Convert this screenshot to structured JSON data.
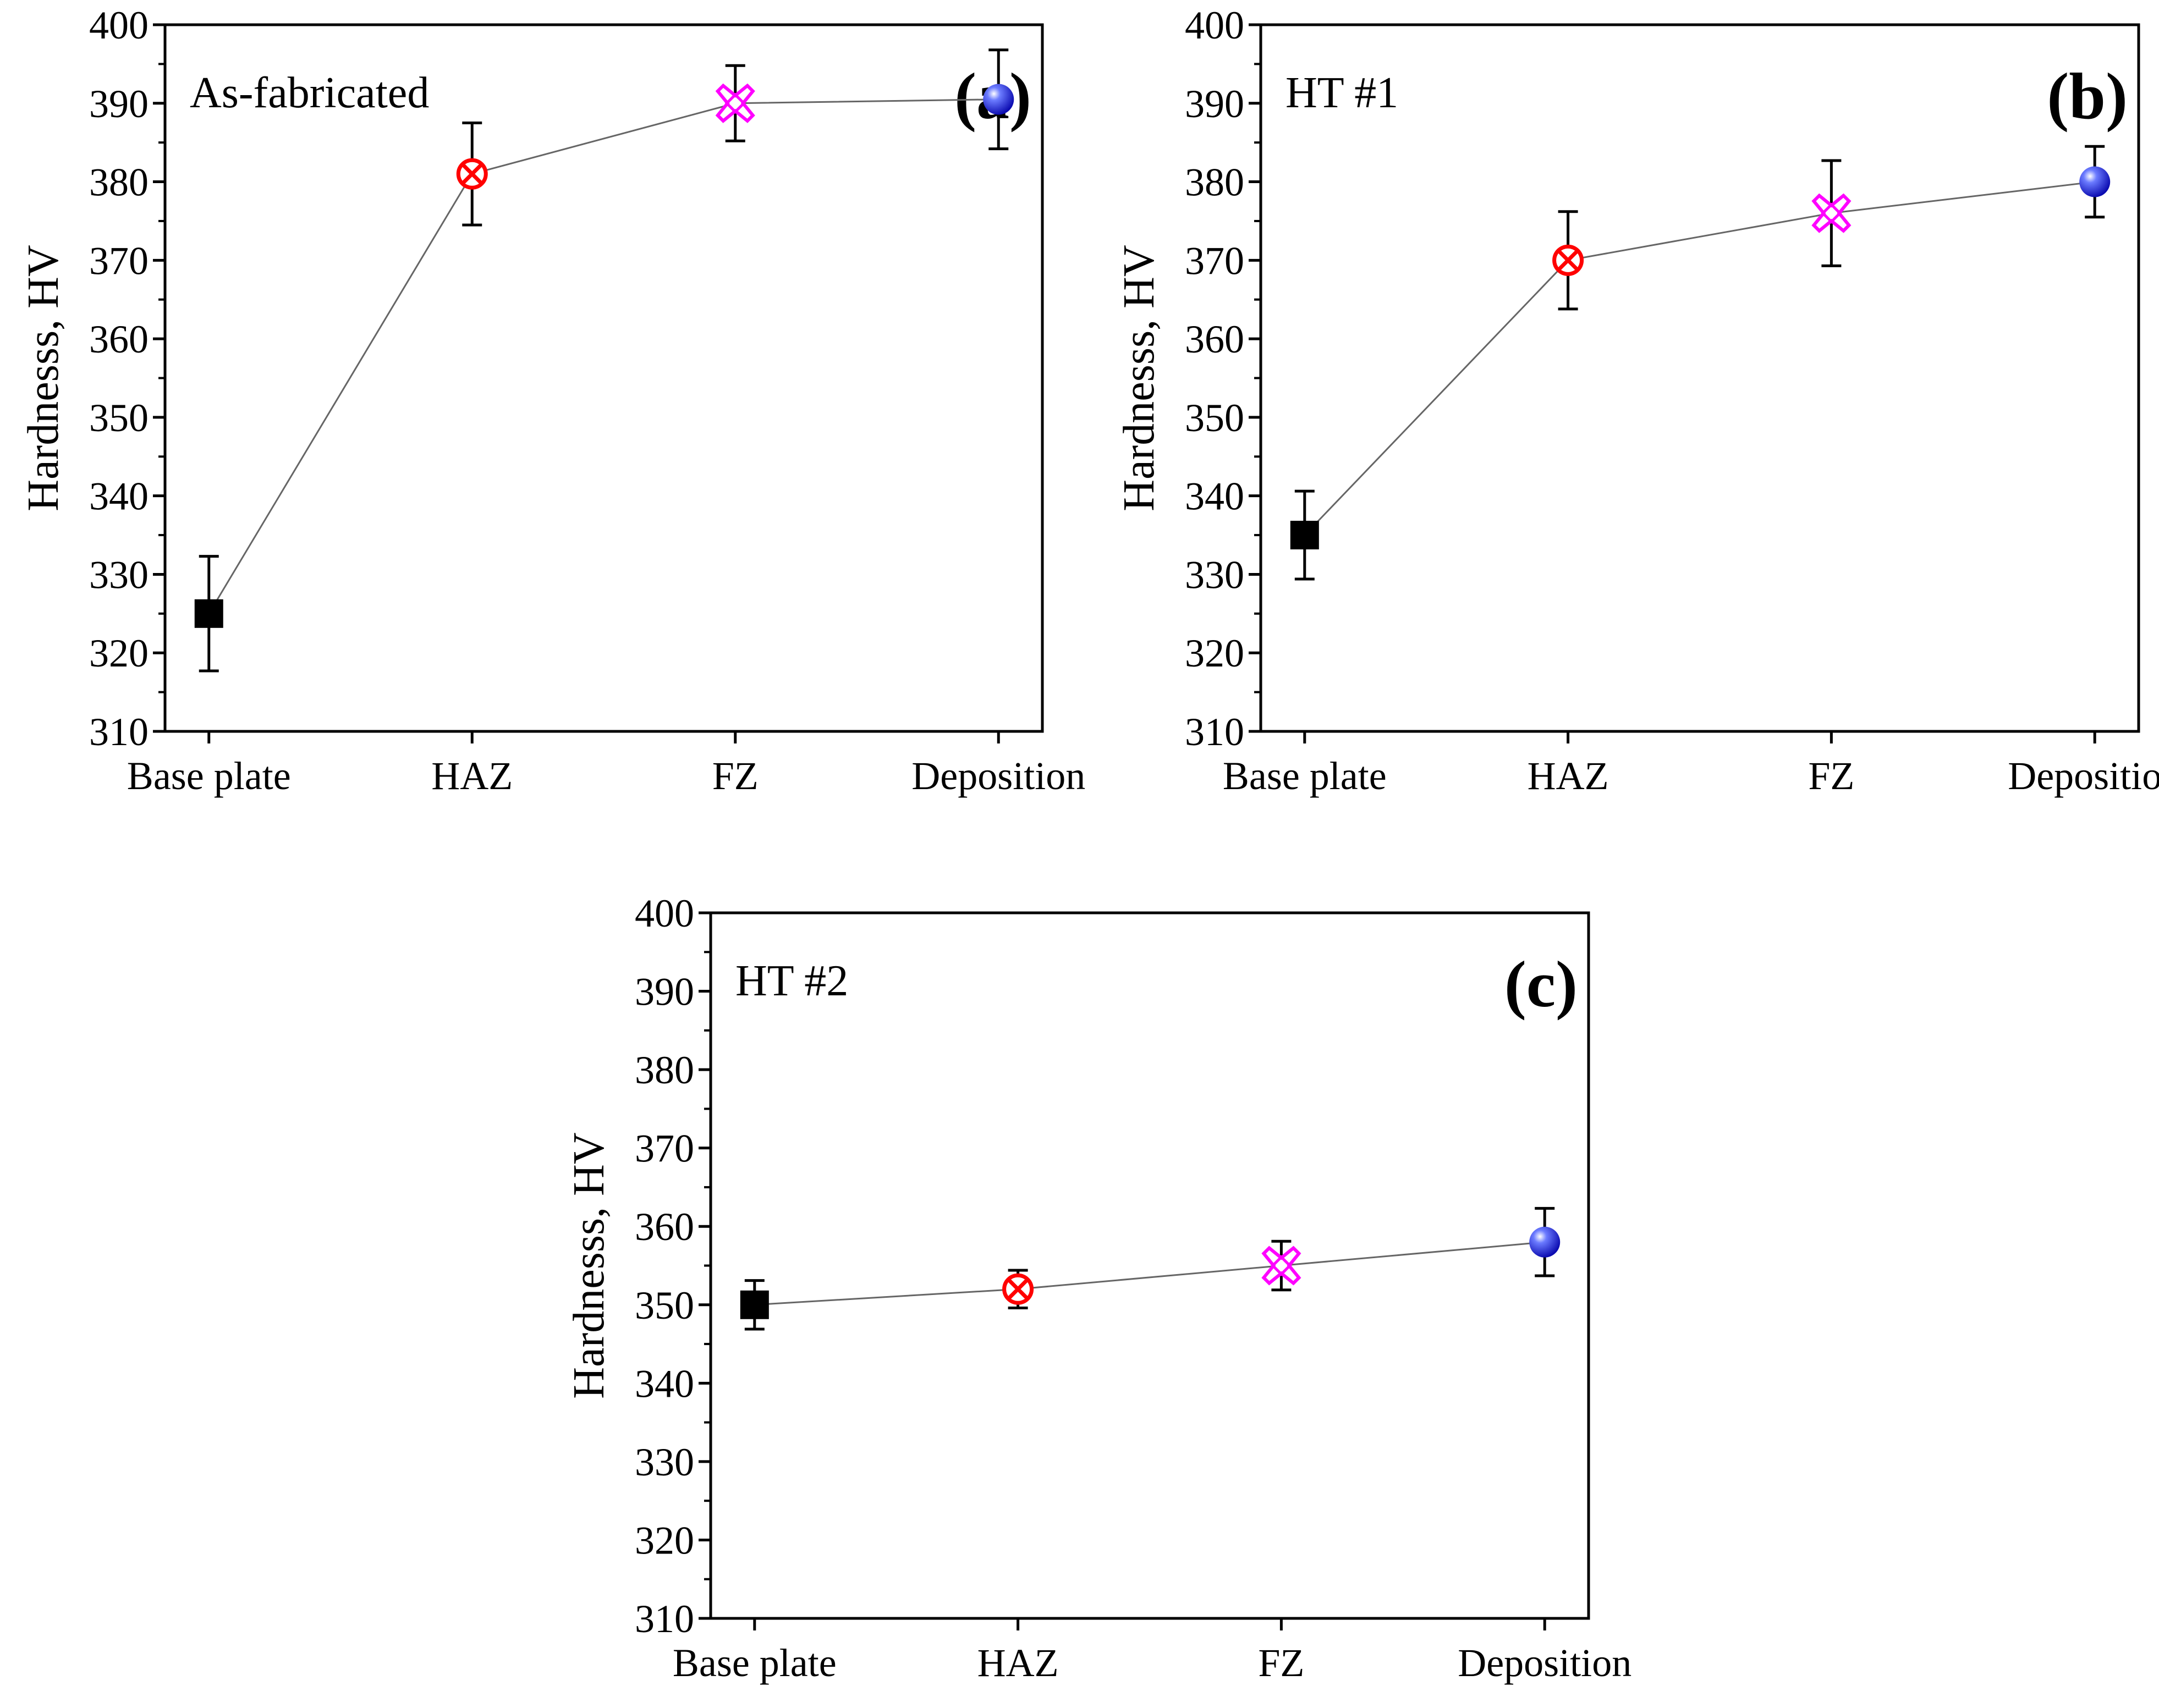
{
  "chart_data": [
    {
      "type": "line",
      "panel_label": "(a)",
      "annotation": "As-fabricated",
      "categories": [
        "Base plate",
        "HAZ",
        "FZ",
        "Deposition"
      ],
      "values": [
        325,
        381,
        390,
        390.5
      ],
      "errors": [
        7.3,
        6.5,
        4.8,
        6.3
      ],
      "ylabel": "Hardnesss, HV",
      "xlabel": "",
      "ylim": [
        310,
        400
      ],
      "yticks": [
        310,
        320,
        330,
        340,
        350,
        360,
        370,
        380,
        390,
        400
      ]
    },
    {
      "type": "line",
      "panel_label": "(b)",
      "annotation": "HT #1",
      "categories": [
        "Base plate",
        "HAZ",
        "FZ",
        "Deposition"
      ],
      "values": [
        335,
        370,
        376,
        380
      ],
      "errors": [
        5.6,
        6.2,
        6.7,
        4.5
      ],
      "ylabel": "Hardnesss, HV",
      "xlabel": "",
      "ylim": [
        310,
        400
      ],
      "yticks": [
        310,
        320,
        330,
        340,
        350,
        360,
        370,
        380,
        390,
        400
      ]
    },
    {
      "type": "line",
      "panel_label": "(c)",
      "annotation": "HT #2",
      "categories": [
        "Base plate",
        "HAZ",
        "FZ",
        "Deposition"
      ],
      "values": [
        350,
        352,
        355,
        358
      ],
      "errors": [
        3.1,
        2.4,
        3.1,
        4.3
      ],
      "ylabel": "Hardnesss, HV",
      "xlabel": "",
      "ylim": [
        310,
        400
      ],
      "yticks": [
        310,
        320,
        330,
        340,
        350,
        360,
        370,
        380,
        390,
        400
      ]
    }
  ],
  "colors": {
    "base_plate": "#000000",
    "haz": "#ff0000",
    "fz": "#ff00ff",
    "deposition": "#1a1aff",
    "connector": "#666666"
  },
  "markers": [
    "square-icon",
    "circle-x-icon",
    "star-cross-icon",
    "sphere-icon"
  ]
}
